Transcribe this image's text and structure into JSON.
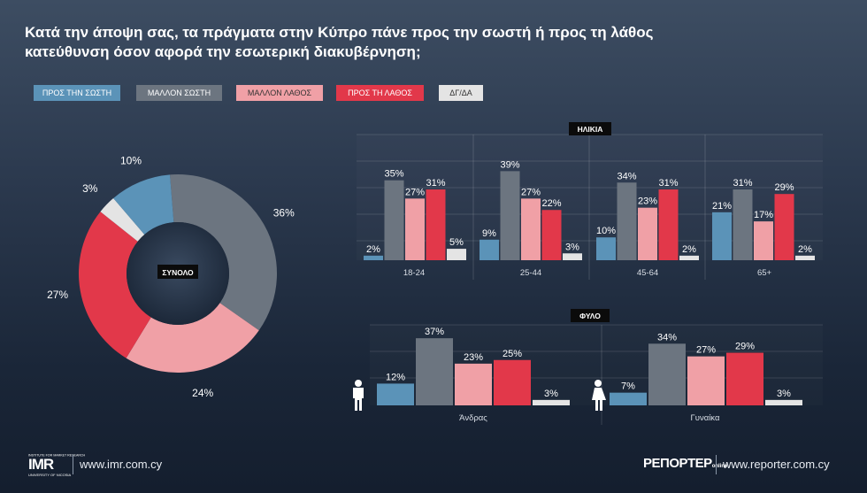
{
  "title": "Κατά την άποψη σας, τα πράγματα στην Κύπρο πάνε προς την σωστή ή προς τη λάθος κατεύθυνση όσον αφορά την εσωτερική διακυβέρνηση;",
  "colors": {
    "pros_swsti": "#5b93b8",
    "mallon_swsti": "#6c7580",
    "mallon_lathos": "#f0a0a6",
    "pros_lathos": "#e2384a",
    "dk": "#e4e4e4"
  },
  "legend": [
    {
      "label": "ΠΡΟΣ ΤΗΝ ΣΩΣΤΗ",
      "color": "#5b93b8"
    },
    {
      "label": "ΜΑΛΛΟΝ ΣΩΣΤΗ",
      "color": "#6c7580"
    },
    {
      "label": "ΜΑΛΛΟΝ ΛΑΘΟΣ",
      "color": "#f0a0a6"
    },
    {
      "label": "ΠΡΟΣ ΤΗ ΛΑΘΟΣ",
      "color": "#e2384a"
    },
    {
      "label": "ΔΓ/ΔΑ",
      "color": "#e4e4e4"
    }
  ],
  "chart_data": [
    {
      "type": "pie",
      "title": "ΣΥΝΟΛΟ",
      "categories": [
        "ΠΡΟΣ ΤΗΝ ΣΩΣΤΗ",
        "ΜΑΛΛΟΝ ΣΩΣΤΗ",
        "ΜΑΛΛΟΝ ΛΑΘΟΣ",
        "ΠΡΟΣ ΤΗ ΛΑΘΟΣ",
        "ΔΓ/ΔΑ"
      ],
      "values": [
        10,
        36,
        24,
        27,
        3
      ],
      "labels": [
        "10%",
        "36%",
        "24%",
        "27%",
        "3%"
      ]
    },
    {
      "type": "bar",
      "title": "ΗΛΙΚΙΑ",
      "categories": [
        "18-24",
        "25-44",
        "45-64",
        "65+"
      ],
      "series": [
        {
          "name": "ΠΡΟΣ ΤΗΝ ΣΩΣΤΗ",
          "values": [
            2,
            9,
            10,
            21
          ]
        },
        {
          "name": "ΜΑΛΛΟΝ ΣΩΣΤΗ",
          "values": [
            35,
            39,
            34,
            31
          ]
        },
        {
          "name": "ΜΑΛΛΟΝ ΛΑΘΟΣ",
          "values": [
            27,
            27,
            23,
            17
          ]
        },
        {
          "name": "ΠΡΟΣ ΤΗ ΛΑΘΟΣ",
          "values": [
            31,
            22,
            31,
            29
          ]
        },
        {
          "name": "ΔΓ/ΔΑ",
          "values": [
            5,
            3,
            2,
            2
          ]
        }
      ],
      "ylim": [
        0,
        42
      ]
    },
    {
      "type": "bar",
      "title": "ΦΥΛΟ",
      "categories": [
        "Άνδρας",
        "Γυναίκα"
      ],
      "series": [
        {
          "name": "ΠΡΟΣ ΤΗΝ ΣΩΣΤΗ",
          "values": [
            12,
            7
          ]
        },
        {
          "name": "ΜΑΛΛΟΝ ΣΩΣΤΗ",
          "values": [
            37,
            34
          ]
        },
        {
          "name": "ΜΑΛΛΟΝ ΛΑΘΟΣ",
          "values": [
            23,
            27
          ]
        },
        {
          "name": "ΠΡΟΣ ΤΗ ΛΑΘΟΣ",
          "values": [
            25,
            29
          ]
        },
        {
          "name": "ΔΓ/ΔΑ",
          "values": [
            3,
            3
          ]
        }
      ],
      "ylim": [
        0,
        42
      ]
    }
  ],
  "footer": {
    "imr_logo": "IMR",
    "imr_subtext": "UNIVERSITY OF NICOSIA",
    "imr_toptext": "INSTITUTE FOR MARKET RESEARCH",
    "imr_url": "www.imr.com.cy",
    "reporter_logo": "ΡΕΠΟΡΤΕΡ",
    "reporter_suffix": "online",
    "reporter_url": "www.reporter.com.cy"
  }
}
